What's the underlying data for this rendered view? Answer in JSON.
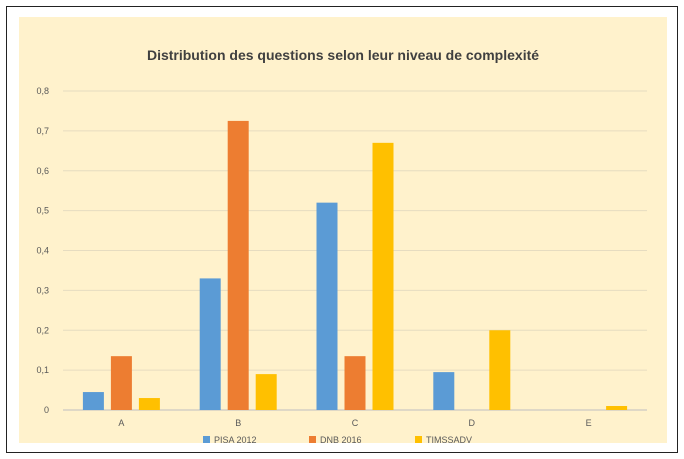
{
  "chart_data": {
    "type": "bar",
    "title": "Distribution des questions selon leur niveau de complexité",
    "xlabel": "",
    "ylabel": "",
    "categories": [
      "A",
      "B",
      "C",
      "D",
      "E"
    ],
    "series": [
      {
        "name": "PISA 2012",
        "values": [
          0.045,
          0.33,
          0.52,
          0.095,
          0
        ]
      },
      {
        "name": "DNB 2016",
        "values": [
          0.135,
          0.725,
          0.135,
          0,
          0
        ]
      },
      {
        "name": "TIMSSADV",
        "values": [
          0.03,
          0.09,
          0.67,
          0.2,
          0.01
        ]
      }
    ],
    "ylim": [
      0,
      0.8
    ],
    "yticks": [
      "0",
      "0,1",
      "0,2",
      "0,3",
      "0,4",
      "0,5",
      "0,6",
      "0,7",
      "0,8"
    ],
    "grid": true,
    "legend_position": "bottom",
    "colors": {
      "series": [
        "#5B9BD5",
        "#ED7D31",
        "#FFC000"
      ],
      "chart_background": "#FFF2CC",
      "plot_background": "#FFF2CC",
      "gridline": "#E6DCC0",
      "text": "#595959",
      "title": "#404040"
    }
  }
}
